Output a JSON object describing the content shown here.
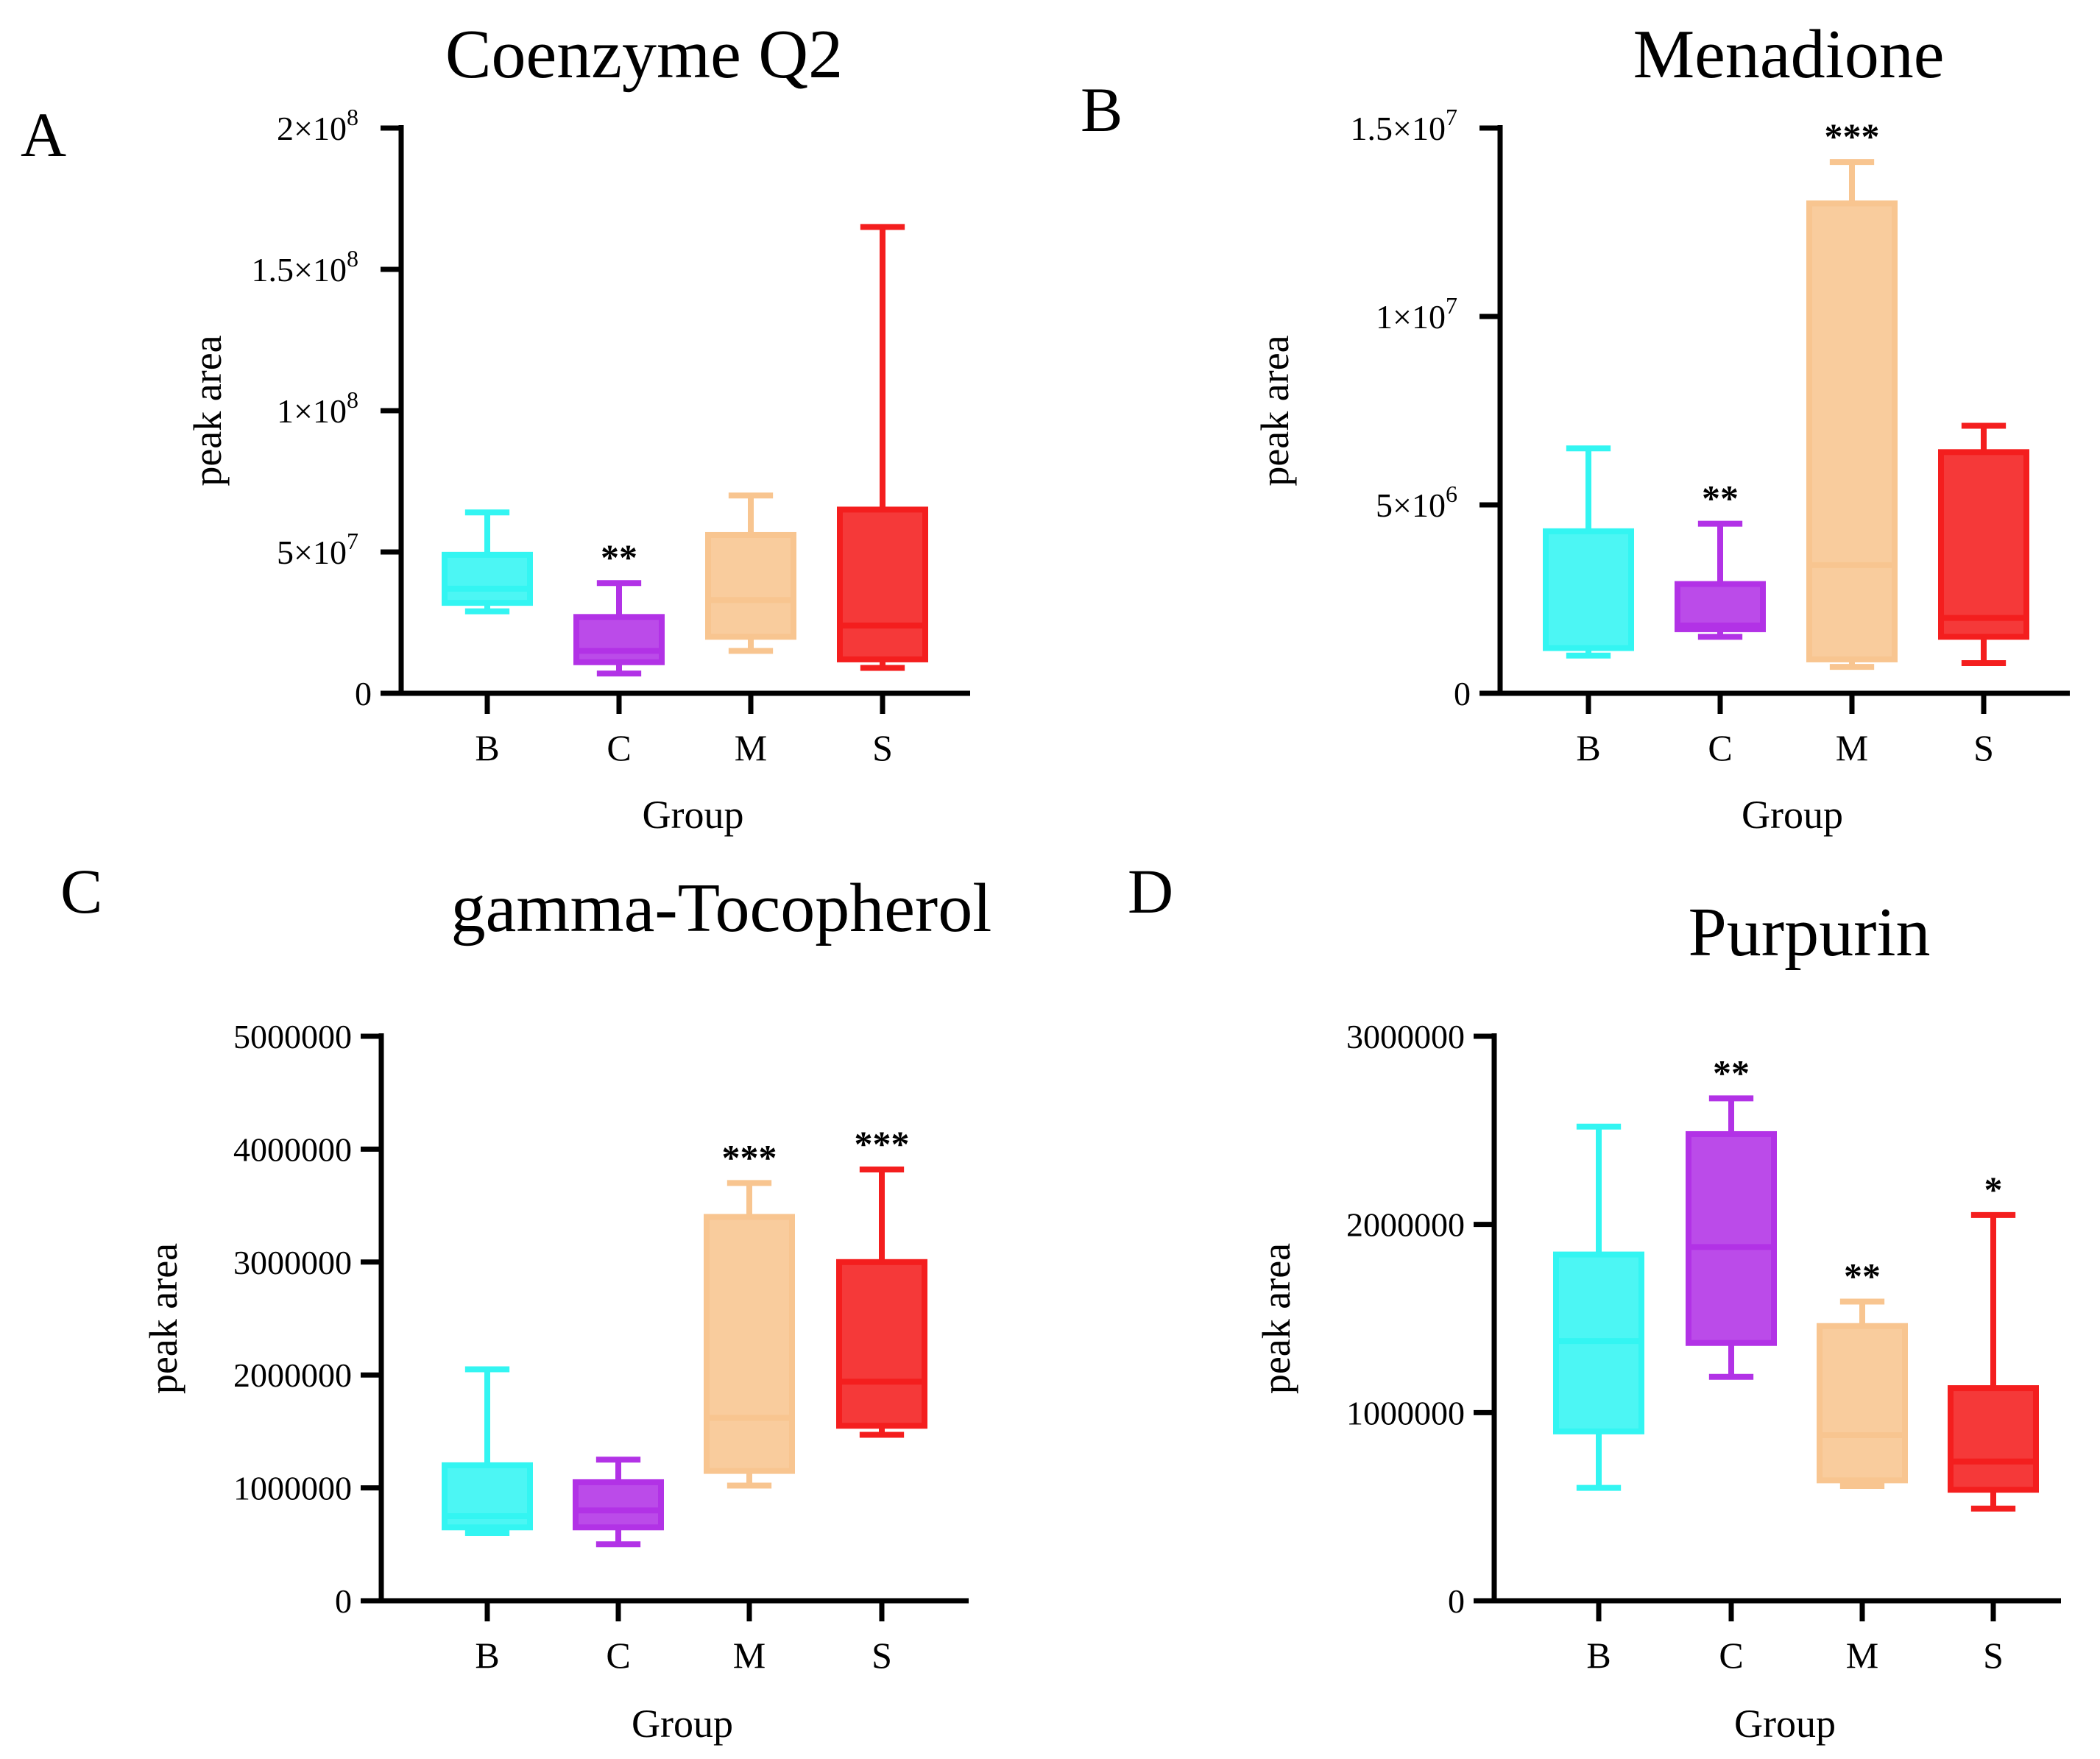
{
  "chart_data": [
    {
      "type": "box",
      "panel": "A",
      "title": "Coenzyme Q2",
      "xlabel": "Group",
      "ylabel": "peak area",
      "ylim": [
        0,
        200000000
      ],
      "yticks": [
        {
          "value": 0,
          "label": "0"
        },
        {
          "value": 50000000,
          "label": "5×10",
          "exp": "7"
        },
        {
          "value": 100000000,
          "label": "1×10",
          "exp": "8"
        },
        {
          "value": 150000000,
          "label": "1.5×10",
          "exp": "8"
        },
        {
          "value": 200000000,
          "label": "2×10",
          "exp": "8"
        }
      ],
      "categories": [
        "B",
        "C",
        "M",
        "S"
      ],
      "boxes": [
        {
          "group": "B",
          "min": 29000000,
          "q1": 32000000,
          "median": 37000000,
          "q3": 49000000,
          "max": 64000000,
          "color": "#33F5F2",
          "sig": ""
        },
        {
          "group": "C",
          "min": 7000000,
          "q1": 11000000,
          "median": 15000000,
          "q3": 27000000,
          "max": 39000000,
          "color": "#B232E6",
          "sig": "**"
        },
        {
          "group": "M",
          "min": 15000000,
          "q1": 20000000,
          "median": 33000000,
          "q3": 56000000,
          "max": 70000000,
          "color": "#F8C590",
          "sig": ""
        },
        {
          "group": "S",
          "min": 9000000,
          "q1": 12000000,
          "median": 24000000,
          "q3": 65000000,
          "max": 165000000,
          "color": "#F41E1E",
          "sig": ""
        }
      ]
    },
    {
      "type": "box",
      "panel": "B",
      "title": "Menadione",
      "xlabel": "Group",
      "ylabel": "peak area",
      "ylim": [
        0,
        15000000
      ],
      "yticks": [
        {
          "value": 0,
          "label": "0"
        },
        {
          "value": 5000000,
          "label": "5×10",
          "exp": "6"
        },
        {
          "value": 10000000,
          "label": "1×10",
          "exp": "7"
        },
        {
          "value": 15000000,
          "label": "1.5×10",
          "exp": "7"
        }
      ],
      "categories": [
        "B",
        "C",
        "M",
        "S"
      ],
      "boxes": [
        {
          "group": "B",
          "min": 1000000,
          "q1": 1200000,
          "median": 1200000,
          "q3": 4300000,
          "max": 6500000,
          "color": "#33F5F2",
          "sig": ""
        },
        {
          "group": "C",
          "min": 1500000,
          "q1": 1700000,
          "median": 1800000,
          "q3": 2900000,
          "max": 4500000,
          "color": "#B232E6",
          "sig": "**"
        },
        {
          "group": "M",
          "min": 700000,
          "q1": 900000,
          "median": 3400000,
          "q3": 13000000,
          "max": 14100000,
          "color": "#F8C590",
          "sig": "***"
        },
        {
          "group": "S",
          "min": 800000,
          "q1": 1500000,
          "median": 2000000,
          "q3": 6400000,
          "max": 7100000,
          "color": "#F41E1E",
          "sig": ""
        }
      ]
    },
    {
      "type": "box",
      "panel": "C",
      "title": "gamma-Tocopherol",
      "xlabel": "Group",
      "ylabel": "peak area",
      "ylim": [
        0,
        5000000
      ],
      "yticks": [
        {
          "value": 0,
          "label": "0"
        },
        {
          "value": 1000000,
          "label": "1000000"
        },
        {
          "value": 2000000,
          "label": "2000000"
        },
        {
          "value": 3000000,
          "label": "3000000"
        },
        {
          "value": 4000000,
          "label": "4000000"
        },
        {
          "value": 5000000,
          "label": "5000000"
        }
      ],
      "categories": [
        "B",
        "C",
        "M",
        "S"
      ],
      "boxes": [
        {
          "group": "B",
          "min": 600000,
          "q1": 650000,
          "median": 750000,
          "q3": 1200000,
          "max": 2050000,
          "color": "#33F5F2",
          "sig": ""
        },
        {
          "group": "C",
          "min": 500000,
          "q1": 650000,
          "median": 800000,
          "q3": 1050000,
          "max": 1250000,
          "color": "#B232E6",
          "sig": ""
        },
        {
          "group": "M",
          "min": 1020000,
          "q1": 1150000,
          "median": 1620000,
          "q3": 3400000,
          "max": 3700000,
          "color": "#F8C590",
          "sig": "***"
        },
        {
          "group": "S",
          "min": 1470000,
          "q1": 1550000,
          "median": 1940000,
          "q3": 3000000,
          "max": 3820000,
          "color": "#F41E1E",
          "sig": "***"
        }
      ]
    },
    {
      "type": "box",
      "panel": "D",
      "title": "Purpurin",
      "xlabel": "Group",
      "ylabel": "peak area",
      "ylim": [
        0,
        3000000
      ],
      "yticks": [
        {
          "value": 0,
          "label": "0"
        },
        {
          "value": 1000000,
          "label": "1000000"
        },
        {
          "value": 2000000,
          "label": "2000000"
        },
        {
          "value": 3000000,
          "label": "3000000"
        }
      ],
      "categories": [
        "B",
        "C",
        "M",
        "S"
      ],
      "boxes": [
        {
          "group": "B",
          "min": 600000,
          "q1": 900000,
          "median": 1380000,
          "q3": 1840000,
          "max": 2520000,
          "color": "#33F5F2",
          "sig": ""
        },
        {
          "group": "C",
          "min": 1190000,
          "q1": 1370000,
          "median": 1880000,
          "q3": 2480000,
          "max": 2670000,
          "color": "#B232E6",
          "sig": "**"
        },
        {
          "group": "M",
          "min": 610000,
          "q1": 640000,
          "median": 880000,
          "q3": 1460000,
          "max": 1590000,
          "color": "#F8C590",
          "sig": "**"
        },
        {
          "group": "S",
          "min": 490000,
          "q1": 590000,
          "median": 740000,
          "q3": 1130000,
          "max": 2050000,
          "color": "#F41E1E",
          "sig": "*"
        }
      ]
    }
  ]
}
